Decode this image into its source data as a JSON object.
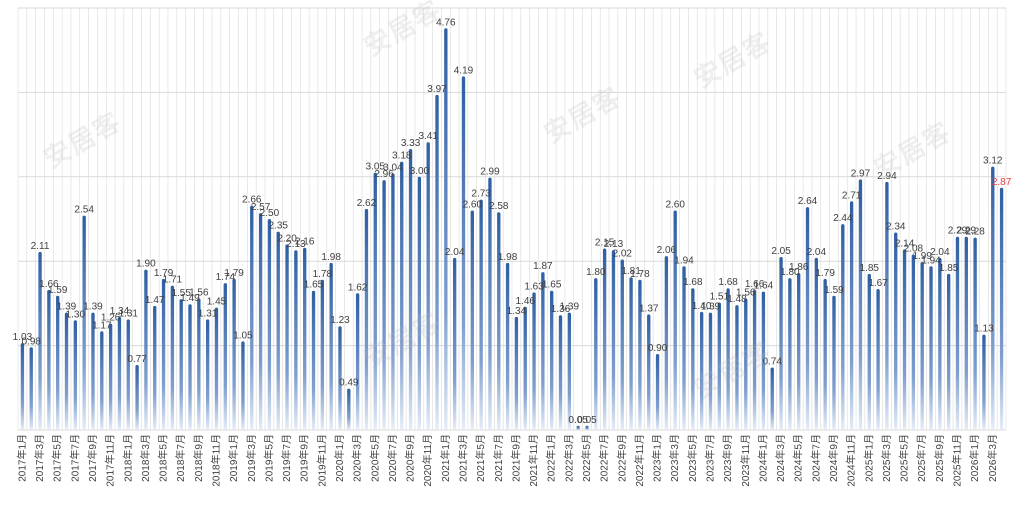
{
  "chart_data": {
    "type": "bar",
    "categories": [
      "2017年1月",
      "",
      "2017年3月",
      "",
      "2017年5月",
      "",
      "2017年7月",
      "",
      "2017年9月",
      "",
      "2017年11月",
      "",
      "2018年1月",
      "",
      "2018年3月",
      "",
      "2018年5月",
      "",
      "2018年7月",
      "",
      "2018年9月",
      "",
      "2018年11月",
      "",
      "2019年1月",
      "",
      "2019年3月",
      "",
      "2019年5月",
      "",
      "2019年7月",
      "",
      "2019年9月",
      "",
      "2019年11月",
      "",
      "2020年1月",
      "",
      "2020年3月",
      "",
      "2020年5月",
      "",
      "2020年7月",
      "",
      "2020年9月",
      "",
      "2020年11月",
      "",
      "2021年1月",
      "",
      "2021年3月",
      "",
      "2021年5月",
      "",
      "2021年7月",
      "",
      "2021年9月",
      "",
      "2021年11月",
      "",
      "2022年1月",
      "",
      "2022年3月",
      "",
      "2022年5月",
      "",
      "2022年7月",
      "",
      "2022年9月",
      "",
      "2022年11月",
      "",
      "2023年1月",
      "",
      "2023年3月",
      "",
      "2023年5月",
      "",
      "2023年7月",
      "",
      "2023年9月",
      "",
      "2023年11月",
      "",
      "2024年1月",
      "",
      "2024年3月",
      "",
      "2024年5月",
      "",
      "2024年7月",
      "",
      "2024年9月",
      "",
      "2024年11月",
      "",
      "2025年1月",
      "",
      "2025年3月",
      "",
      "2025年5月",
      "",
      "2025年7月",
      "",
      "2025年9月",
      "",
      "2025年11月",
      "",
      "2026年1月",
      "",
      "2026年3月"
    ],
    "values": [
      1.03,
      0.98,
      2.11,
      1.66,
      1.59,
      1.39,
      1.3,
      2.54,
      1.39,
      1.17,
      1.26,
      1.34,
      1.31,
      0.77,
      1.9,
      1.47,
      1.79,
      1.71,
      1.55,
      1.49,
      1.56,
      1.31,
      1.45,
      1.74,
      1.79,
      1.05,
      2.66,
      2.57,
      2.5,
      2.35,
      2.2,
      2.13,
      2.16,
      1.65,
      1.78,
      1.98,
      1.23,
      0.49,
      1.62,
      2.62,
      3.05,
      2.96,
      3.04,
      3.18,
      3.33,
      3.0,
      3.41,
      3.97,
      4.76,
      2.04,
      4.19,
      2.6,
      2.73,
      2.99,
      2.58,
      1.98,
      1.34,
      1.46,
      1.63,
      1.87,
      1.65,
      1.36,
      1.39,
      0.05,
      0.05,
      1.8,
      2.15,
      2.13,
      2.02,
      1.81,
      1.78,
      1.37,
      0.9,
      2.06,
      2.6,
      1.94,
      1.68,
      1.4,
      1.39,
      1.51,
      1.68,
      1.48,
      1.56,
      1.66,
      1.64,
      0.74,
      2.05,
      1.8,
      1.86,
      2.64,
      2.04,
      1.79,
      1.59,
      2.44,
      2.71,
      2.97,
      1.85,
      1.67,
      2.94,
      2.34,
      2.14,
      2.08,
      1.99,
      1.94,
      2.04,
      1.85,
      2.29,
      2.29,
      2.28,
      1.13,
      3.12,
      2.87
    ],
    "labels": [
      "1.03",
      "0.98",
      "2.11",
      "1.66",
      "1.59",
      "1.39",
      "1.30",
      "2.54",
      "1.39",
      "1.17",
      "1.26",
      "1.34",
      "1.31",
      "0.77",
      "1.90",
      "1.47",
      "1.79",
      "1.71",
      "1.55",
      "1.49",
      "1.56",
      "1.31",
      "1.45",
      "1.74",
      "1.79",
      "1.05",
      "2.66",
      "2.57",
      "2.50",
      "2.35",
      "2.20",
      "2.13",
      "2.16",
      "1.65",
      "1.78",
      "1.98",
      "1.23",
      "0.49",
      "1.62",
      "2.62",
      "3.05",
      "2.96",
      "3.04",
      "3.18",
      "3.33",
      "3.00",
      "3.41",
      "3.97",
      "4.76",
      "2.04",
      "4.19",
      "2.60",
      "2.73",
      "2.99",
      "2.58",
      "1.98",
      "1.34",
      "1.46",
      "1.63",
      "1.87",
      "1.65",
      "1.36",
      "1.39",
      "0.05",
      "0.05",
      "1.80",
      "2.15",
      "2.13",
      "2.02",
      "1.81",
      "1.78",
      "1.37",
      "0.90",
      "2.06",
      "2.60",
      "1.94",
      "1.68",
      "1.40",
      "1.39",
      "1.51",
      "1.68",
      "1.48",
      "1.56",
      "1.66",
      "1.64",
      "0.74",
      "2.05",
      "1.80",
      "1.86",
      "2.64",
      "2.04",
      "1.79",
      "1.59",
      "2.44",
      "2.71",
      "2.97",
      "1.85",
      "1.67",
      "2.94",
      "2.34",
      "2.14",
      "2.08",
      "1.99",
      "1.94",
      "2.04",
      "1.85",
      "2.29",
      "2.29",
      "2.28",
      "1.13",
      "3.12",
      "2.87"
    ],
    "highlight_index": 111,
    "ylim": [
      0,
      5
    ],
    "gridlines": true,
    "title": "",
    "xlabel": "",
    "ylabel": ""
  },
  "colors": {
    "bar_dark": "#2e5fa3",
    "bar_light": "#e6edf7",
    "label": "#404040",
    "highlight_label": "#e03c3c",
    "grid": "#d9d9d9"
  },
  "watermark": {
    "text": "安居客"
  }
}
